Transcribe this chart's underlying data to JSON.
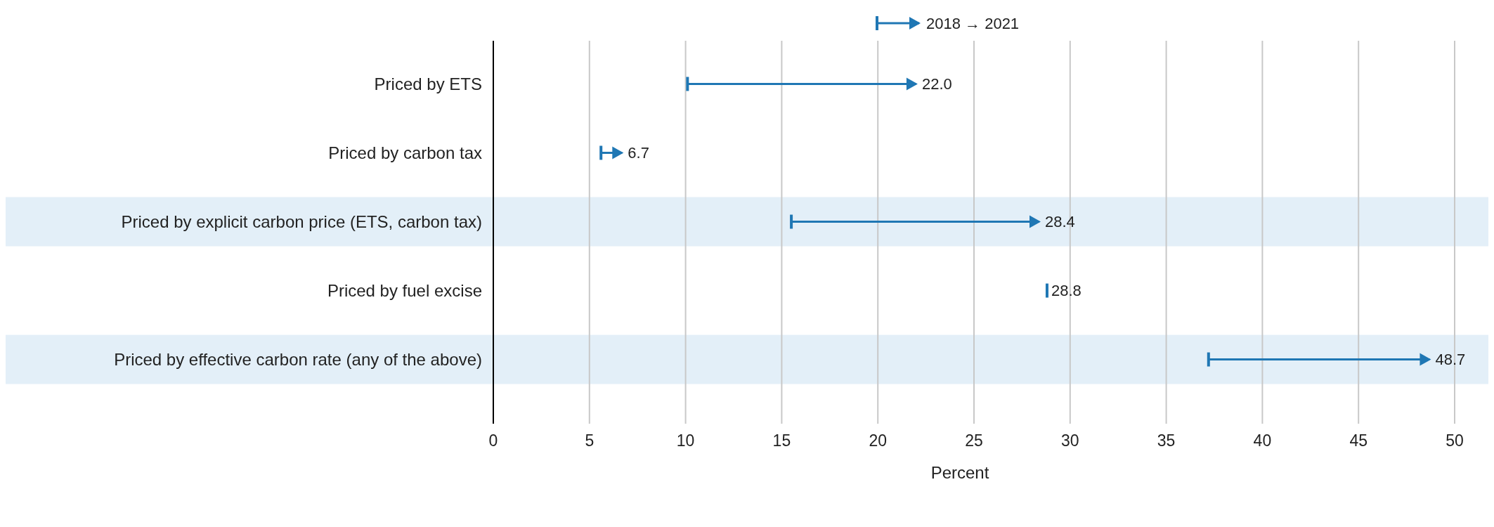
{
  "chart_data": {
    "type": "bar",
    "orientation": "horizontal",
    "xlabel": "Percent",
    "categories": [
      "Priced by ETS",
      "Priced by carbon tax",
      "Priced by explicit carbon price (ETS, carbon tax)",
      "Priced by fuel excise",
      "Priced by effective carbon rate (any of the above)"
    ],
    "series": [
      {
        "name": "2018 → 2021",
        "color": "#1f77b4",
        "base": [
          10.1,
          5.6,
          15.5,
          28.8,
          37.2
        ],
        "values": [
          11.9,
          1.1,
          12.9,
          0,
          11.5
        ],
        "value_labels": [
          "22.0",
          "6.7",
          "28.4",
          "28.8",
          "48.7"
        ]
      }
    ],
    "bands": [
      {
        "axis": "y",
        "from": "Priced by explicit carbon price (ETS, carbon tax)",
        "to": "Priced by explicit carbon price (ETS, carbon tax)",
        "color": "#e3eff8"
      },
      {
        "axis": "y",
        "from": "Priced by effective carbon rate (any of the above)",
        "to": "Priced by effective carbon rate (any of the above)",
        "color": "#e3eff8"
      }
    ],
    "xlim": [
      0,
      50
    ],
    "xticks": [
      0,
      5,
      10,
      15,
      20,
      25,
      30,
      35,
      40,
      45,
      50
    ],
    "grid": "x",
    "legend": "top"
  }
}
